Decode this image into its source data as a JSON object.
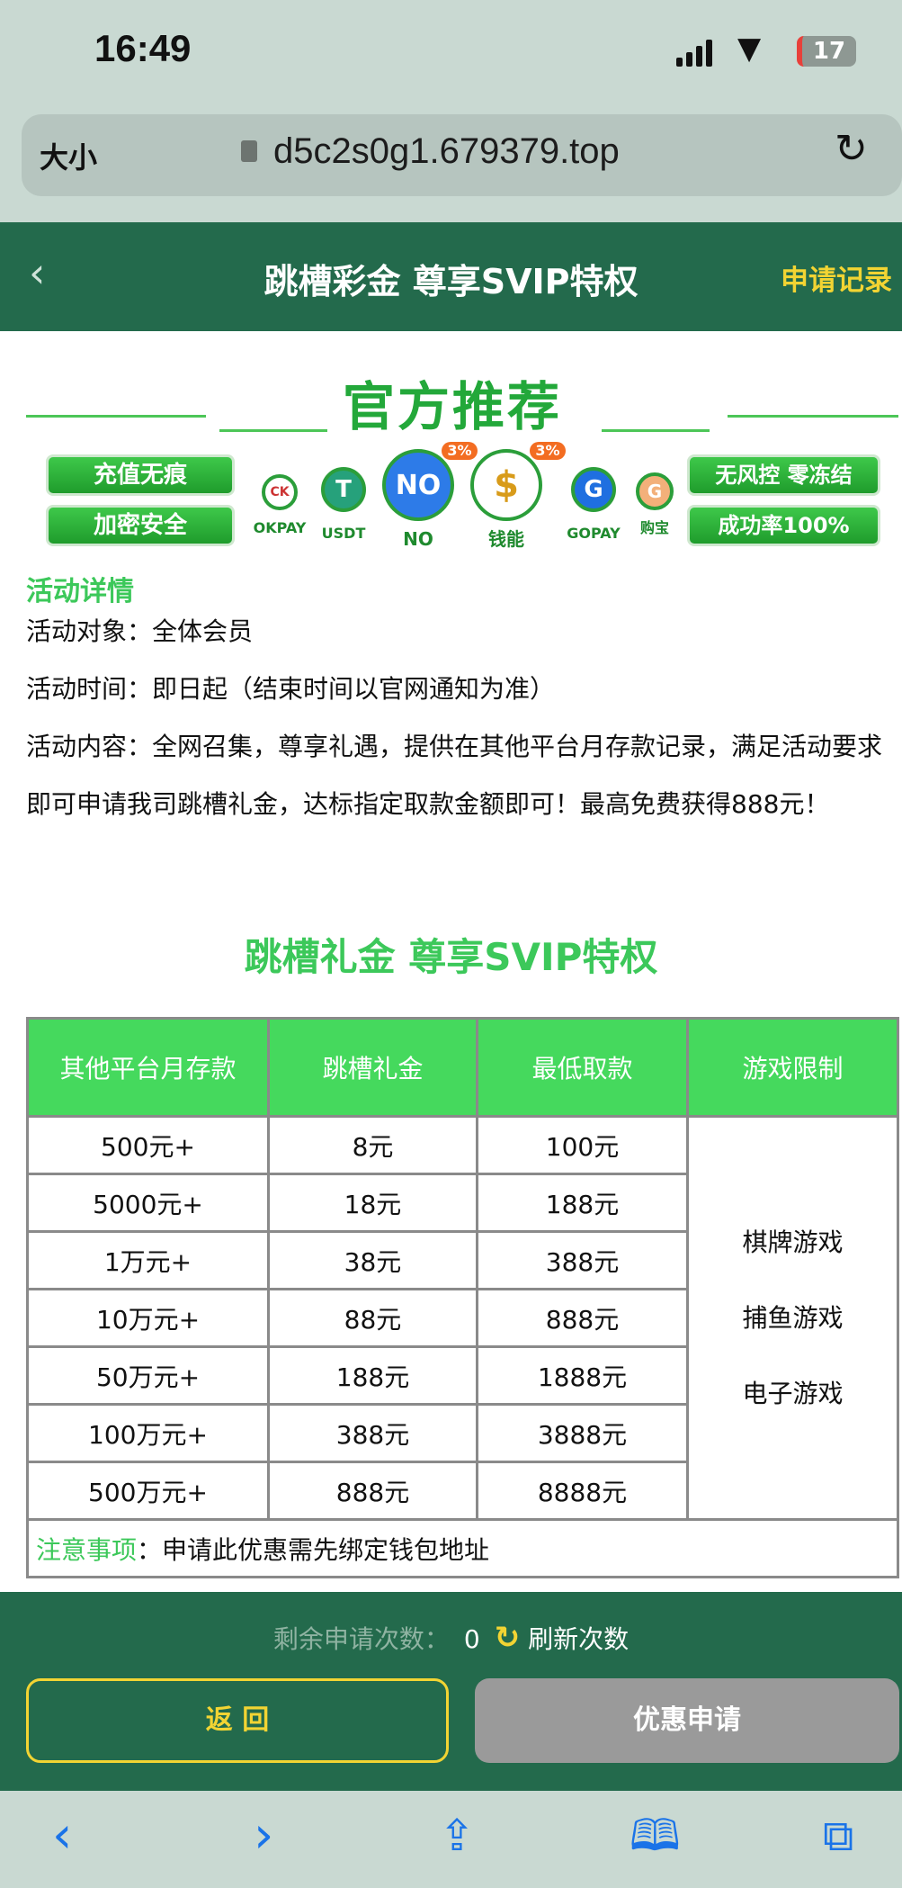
{
  "status": {
    "time": "16:49",
    "battery": "17"
  },
  "browser": {
    "font_size_label": "大小",
    "url": "d5c2s0g1.679379.top"
  },
  "header": {
    "title": "跳槽彩金 尊享SVIP特权",
    "records": "申请记录"
  },
  "banner": {
    "title": "官方推荐",
    "left_buttons": [
      "充值无痕",
      "加密安全"
    ],
    "right_buttons": [
      "无风控 零冻结",
      "成功率100%"
    ],
    "coins": [
      {
        "label": "OKPAY",
        "glyph": "CK"
      },
      {
        "label": "USDT",
        "glyph": "T"
      },
      {
        "label": "NO",
        "glyph": "NO",
        "badge": "3%"
      },
      {
        "label": "钱能",
        "glyph": "$",
        "badge": "3%"
      },
      {
        "label": "GOPAY",
        "glyph": "G"
      },
      {
        "label": "购宝",
        "glyph": "G"
      }
    ]
  },
  "activity": {
    "section_title": "活动详情",
    "target": "活动对象：全体会员",
    "time": "活动时间：即日起（结束时间以官网通知为准）",
    "content": "活动内容：全网召集，尊享礼遇，提供在其他平台月存款记录，满足活动要求即可申请我司跳槽礼金，达标指定取款金额即可！最高免费获得888元！"
  },
  "subtitle": "跳槽礼金 尊享SVIP特权",
  "table": {
    "headers": [
      "其他平台月存款",
      "跳槽礼金",
      "最低取款",
      "游戏限制"
    ],
    "rows": [
      [
        "500元+",
        "8元",
        "100元"
      ],
      [
        "5000元+",
        "18元",
        "188元"
      ],
      [
        "1万元+",
        "38元",
        "388元"
      ],
      [
        "10万元+",
        "88元",
        "888元"
      ],
      [
        "50万元+",
        "188元",
        "1888元"
      ],
      [
        "100万元+",
        "388元",
        "3888元"
      ],
      [
        "500万元+",
        "888元",
        "8888元"
      ]
    ],
    "games": [
      "棋牌游戏",
      "捕鱼游戏",
      "电子游戏"
    ],
    "note_label": "注意事项",
    "note_text": "：申请此优惠需先绑定钱包地址"
  },
  "footer": {
    "remaining_label": "剩余申请次数：",
    "remaining_count": "0",
    "refresh": "刷新次数",
    "back": "返 回",
    "apply": "优惠申请"
  },
  "colors": {
    "header": "#236a4c",
    "accent_green": "#3cc85a",
    "table_header": "#45d95d",
    "yellow": "#f2d433",
    "disabled": "#9a9a9a"
  }
}
